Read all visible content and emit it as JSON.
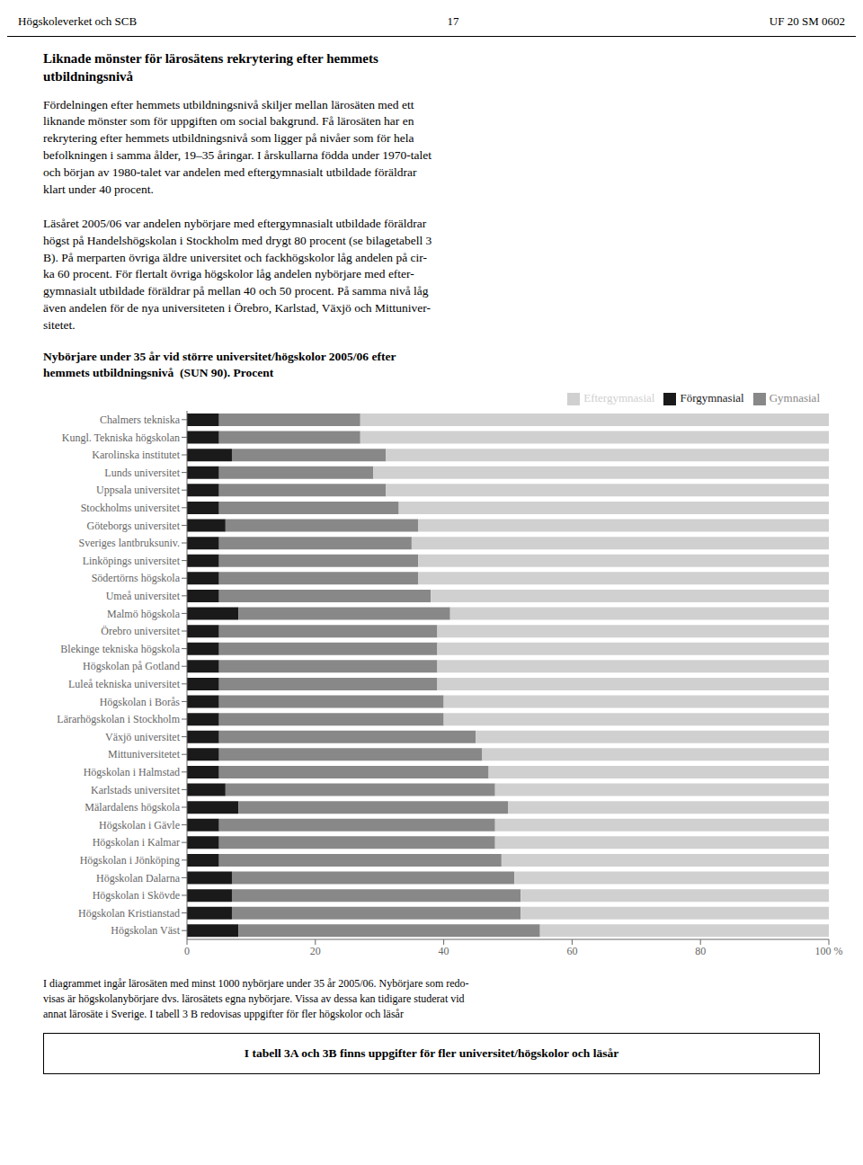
{
  "chart_data": {
    "type": "bar",
    "title": "Nybörjare under 35 år vid större universitet/högskolor 2005/06 efter\nhemmets utbildningsnivå  (SUN 90). Procent",
    "annotations": [
      "Högskoleverket och SCB",
      "17",
      "UF 20 SM 0602",
      "Liknade mönster för lärosätens rekrytering efter hemmets\nutbildningsnivå",
      "Fördelningen efter hemmets utbildningsnivå skiljer mellan lärosäten med ett\nliknande mönster som för uppgiften om social bakgrund. Få lärosäten har en\nrekrytering efter hemmets utbildningsnivå som ligger på nivåer som för hela\nbefolkningen i samma ålder, 19–35 åringar. I årskullarna födda under 1970-talet\noch början av 1980-talet var andelen med eftergymnasialt utbildade föräldrar\nklart under 40 procent.\n\nLäsåret 2005/06 var andelen nybörjare med eftergymnasialt utbildade föräldrar\nhögst på Handelshögskolan i Stockholm med drygt 80 procent (se bilagetabell 3\nB). På merparten övriga äldre universitet och fackhögskolor låg andelen på cir-\nka 60 procent. För flertalt övriga högskolor låg andelen nybörjare med efter-\ngymnasialt utbildade föräldrar på mellan 40 och 50 procent. På samma nivå låg\näven andelen för de nya universiteten i Örebro, Karlstad, Växjö och Mittuniver-\nsitetet.",
      "I diagrammet ingår lärosäten med minst 1000 nybörjare under 35 år 2005/06. Nybörjare som redo-\nvisas är högskolanybörjare dvs. lärosätets egna nybörjare. Vissa av dessa kan tidigare studerat vid\nannat lärosäte i Sverige. I tabell 3 B redovisas uppgifter för fler högskolor och läsår",
      "I tabell 3A och 3B finns uppgifter för fler universitet/högskolor och läsår"
    ],
    "categories": [
      "Chalmers tekniska",
      "Kungl. Tekniska högskolan",
      "Karolinska institutet",
      "Lunds universitet",
      "Uppsala universitet",
      "Stockholms universitet",
      "Göteborgs universitet",
      "Sveriges lantbruksuniv.",
      "Linköpings universitet",
      "Södertörns högskola",
      "Umeå universitet",
      "Malmö högskola",
      "Örebro universitet",
      "Blekinge tekniska högskola",
      "Högskolan på Gotland",
      "Luleå tekniska universitet",
      "Högskolan i Borås",
      "Lärarhögskolan i Stockholm",
      "Växjö universitet",
      "Mittuniversitetet",
      "Högskolan i Halmstad",
      "Karlstads universitet",
      "Mälardalens högskola",
      "Högskolan i Gävle",
      "Högskolan i Kalmar",
      "Högskolan i Jönköping",
      "Högskolan Dalarna",
      "Högskolan i Skövde",
      "Högskolan Kristianstad",
      "Högskolan Väst"
    ],
    "series": [
      {
        "name": "Förgymnasial",
        "color": "#1a1a1a",
        "values": [
          5,
          5,
          7,
          5,
          5,
          5,
          6,
          5,
          5,
          5,
          5,
          8,
          5,
          5,
          5,
          5,
          5,
          5,
          5,
          5,
          5,
          6,
          8,
          5,
          5,
          5,
          7,
          7,
          7,
          8
        ]
      },
      {
        "name": "Gymnasial",
        "color": "#888888",
        "values": [
          22,
          22,
          24,
          24,
          26,
          28,
          30,
          30,
          31,
          31,
          33,
          33,
          34,
          34,
          34,
          34,
          35,
          35,
          40,
          41,
          42,
          42,
          42,
          43,
          43,
          44,
          44,
          45,
          45,
          47
        ]
      },
      {
        "name": "Eftergymnasial",
        "color": "#d0d0d0",
        "values": [
          73,
          73,
          69,
          71,
          69,
          67,
          64,
          65,
          64,
          64,
          62,
          59,
          61,
          61,
          61,
          61,
          60,
          60,
          55,
          54,
          53,
          52,
          50,
          52,
          52,
          51,
          49,
          48,
          48,
          45
        ]
      }
    ],
    "orientation": "horizontal",
    "stacked": true,
    "xlim": [
      0,
      100
    ],
    "xticks": [
      0,
      20,
      40,
      60,
      80,
      {
        "value": 100,
        "label": "100 %"
      }
    ],
    "grid": false,
    "legend": "upper right"
  }
}
